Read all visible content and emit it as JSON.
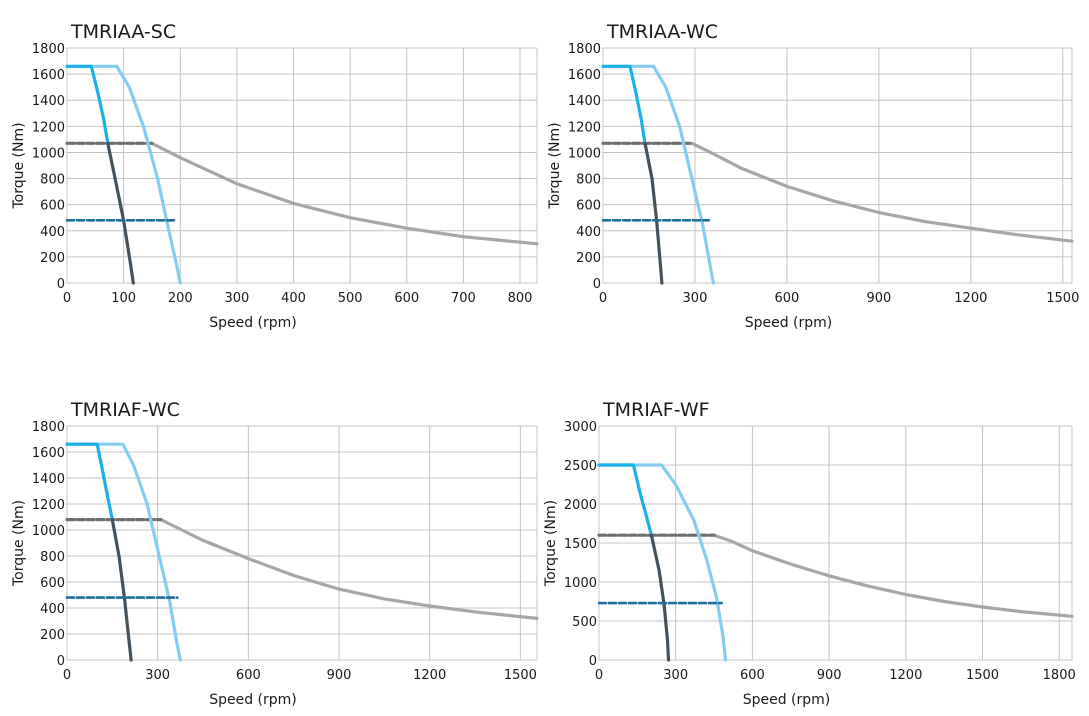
{
  "chart_data": [
    {
      "type": "line",
      "title": "TMRIAA-SC",
      "xlabel": "Speed (rpm)",
      "ylabel": "Torque (Nm)",
      "xlim": [
        0,
        830
      ],
      "ylim": [
        0,
        1800
      ],
      "xticks": [
        0,
        100,
        200,
        300,
        400,
        500,
        600,
        700,
        800
      ],
      "yticks": [
        0,
        200,
        400,
        600,
        800,
        1000,
        1200,
        1400,
        1600,
        1800
      ],
      "grid": true,
      "series": [
        {
          "style": "gray-solid",
          "color": "#a6a6a6",
          "x": [
            150,
            200,
            300,
            400,
            500,
            600,
            700,
            830
          ],
          "y": [
            1070,
            960,
            760,
            610,
            500,
            420,
            355,
            300
          ]
        },
        {
          "style": "gray-dashed",
          "color": "#6e6e6e",
          "x": [
            0,
            150
          ],
          "y": [
            1070,
            1070
          ]
        },
        {
          "style": "light-blue",
          "color": "#85cdf0",
          "x": [
            0,
            88,
            110,
            135,
            160,
            180,
            193,
            200
          ],
          "y": [
            1660,
            1660,
            1500,
            1200,
            800,
            400,
            150,
            0
          ]
        },
        {
          "style": "blue",
          "color": "#19b1e8",
          "x": [
            0,
            43,
            55,
            65,
            72
          ],
          "y": [
            1660,
            1660,
            1450,
            1250,
            1070
          ]
        },
        {
          "style": "dark-slate",
          "color": "#44525c",
          "x": [
            72,
            85,
            100,
            112,
            117
          ],
          "y": [
            1070,
            800,
            480,
            150,
            0
          ]
        },
        {
          "style": "teal-dashed",
          "color": "#1e6f9a",
          "x": [
            0,
            190
          ],
          "y": [
            480,
            480
          ]
        }
      ]
    },
    {
      "type": "line",
      "title": "TMRIAA-WC",
      "xlabel": "Speed (rpm)",
      "ylabel": "Torque (Nm)",
      "xlim": [
        0,
        1530
      ],
      "ylim": [
        0,
        1800
      ],
      "xticks": [
        0,
        300,
        600,
        900,
        1200,
        1500
      ],
      "yticks": [
        0,
        200,
        400,
        600,
        800,
        1000,
        1200,
        1400,
        1600,
        1800
      ],
      "grid": true,
      "series": [
        {
          "style": "gray-solid",
          "color": "#a6a6a6",
          "x": [
            290,
            360,
            450,
            600,
            750,
            900,
            1050,
            1200,
            1350,
            1530
          ],
          "y": [
            1070,
            990,
            880,
            740,
            630,
            540,
            470,
            420,
            370,
            320
          ]
        },
        {
          "style": "gray-dashed",
          "color": "#6e6e6e",
          "x": [
            0,
            290
          ],
          "y": [
            1070,
            1070
          ]
        },
        {
          "style": "light-blue",
          "color": "#85cdf0",
          "x": [
            0,
            165,
            205,
            250,
            290,
            325,
            348,
            360
          ],
          "y": [
            1660,
            1660,
            1500,
            1200,
            800,
            450,
            150,
            0
          ]
        },
        {
          "style": "blue",
          "color": "#19b1e8",
          "x": [
            0,
            88,
            108,
            125,
            137
          ],
          "y": [
            1660,
            1660,
            1450,
            1250,
            1070
          ]
        },
        {
          "style": "dark-slate",
          "color": "#44525c",
          "x": [
            137,
            160,
            175,
            187,
            192
          ],
          "y": [
            1070,
            800,
            480,
            150,
            0
          ]
        },
        {
          "style": "teal-dashed",
          "color": "#1e6f9a",
          "x": [
            0,
            345
          ],
          "y": [
            480,
            480
          ]
        }
      ]
    },
    {
      "type": "line",
      "title": "TMRIAF-WC",
      "xlabel": "Speed (rpm)",
      "ylabel": "Torque (Nm)",
      "xlim": [
        0,
        1555
      ],
      "ylim": [
        0,
        1800
      ],
      "xticks": [
        0,
        300,
        600,
        900,
        1200,
        1500
      ],
      "yticks": [
        0,
        200,
        400,
        600,
        800,
        1000,
        1200,
        1400,
        1600,
        1800
      ],
      "grid": true,
      "series": [
        {
          "style": "gray-solid",
          "color": "#a6a6a6",
          "x": [
            310,
            380,
            450,
            600,
            750,
            900,
            1050,
            1200,
            1350,
            1555
          ],
          "y": [
            1080,
            1000,
            920,
            780,
            650,
            545,
            470,
            415,
            370,
            320
          ]
        },
        {
          "style": "gray-dashed",
          "color": "#6e6e6e",
          "x": [
            0,
            310
          ],
          "y": [
            1080,
            1080
          ]
        },
        {
          "style": "light-blue",
          "color": "#85cdf0",
          "x": [
            0,
            185,
            220,
            265,
            305,
            340,
            362,
            375
          ],
          "y": [
            1660,
            1660,
            1500,
            1200,
            800,
            450,
            150,
            0
          ]
        },
        {
          "style": "blue",
          "color": "#19b1e8",
          "x": [
            0,
            100,
            118,
            135,
            150
          ],
          "y": [
            1660,
            1660,
            1450,
            1250,
            1080
          ]
        },
        {
          "style": "dark-slate",
          "color": "#44525c",
          "x": [
            150,
            172,
            190,
            205,
            212
          ],
          "y": [
            1080,
            800,
            480,
            150,
            0
          ]
        },
        {
          "style": "teal-dashed",
          "color": "#1e6f9a",
          "x": [
            0,
            365
          ],
          "y": [
            480,
            480
          ]
        }
      ]
    },
    {
      "type": "line",
      "title": "TMRIAF-WF",
      "xlabel": "Speed (rpm)",
      "ylabel": "Torque (Nm)",
      "xlim": [
        0,
        1850
      ],
      "ylim": [
        0,
        3000
      ],
      "xticks": [
        0,
        300,
        600,
        900,
        1200,
        1500,
        1800
      ],
      "yticks": [
        0,
        500,
        1000,
        1500,
        2000,
        2500,
        3000
      ],
      "grid": true,
      "series": [
        {
          "style": "gray-solid",
          "color": "#a6a6a6",
          "x": [
            450,
            520,
            600,
            750,
            900,
            1050,
            1200,
            1350,
            1500,
            1650,
            1850
          ],
          "y": [
            1600,
            1520,
            1400,
            1230,
            1080,
            950,
            840,
            750,
            680,
            620,
            560
          ]
        },
        {
          "style": "gray-dashed",
          "color": "#6e6e6e",
          "x": [
            0,
            450
          ],
          "y": [
            1600,
            1600
          ]
        },
        {
          "style": "light-blue",
          "color": "#85cdf0",
          "x": [
            0,
            245,
            300,
            370,
            420,
            460,
            485,
            495
          ],
          "y": [
            2500,
            2500,
            2250,
            1800,
            1300,
            800,
            300,
            0
          ]
        },
        {
          "style": "blue",
          "color": "#19b1e8",
          "x": [
            0,
            135,
            160,
            185,
            205
          ],
          "y": [
            2500,
            2500,
            2150,
            1850,
            1600
          ]
        },
        {
          "style": "dark-slate",
          "color": "#44525c",
          "x": [
            205,
            235,
            255,
            268,
            272
          ],
          "y": [
            1600,
            1150,
            700,
            250,
            0
          ]
        },
        {
          "style": "teal-dashed",
          "color": "#1e6f9a",
          "x": [
            0,
            480
          ],
          "y": [
            730,
            730
          ]
        }
      ]
    }
  ]
}
